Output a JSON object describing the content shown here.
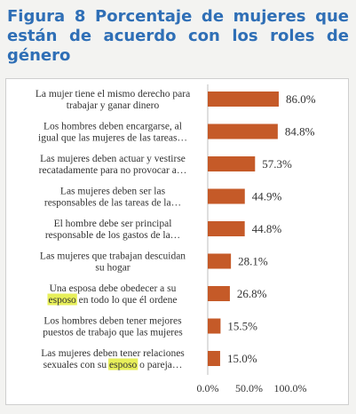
{
  "figure": {
    "title": "Figura 8 Porcentaje de mujeres que están de acuerdo con los roles de género"
  },
  "chart_data": {
    "type": "bar",
    "orientation": "horizontal",
    "title": "",
    "xlabel": "",
    "ylabel": "",
    "xlim": [
      0,
      100
    ],
    "grid": false,
    "bar_color": "#c55a28",
    "highlight_color": "#e7ef5a",
    "categories": [
      [
        "La mujer tiene el mismo derecho para",
        "trabajar y ganar dinero"
      ],
      [
        "Los hombres deben encargarse, al",
        "igual que las mujeres de las tareas…"
      ],
      [
        "Las mujeres deben actuar y vestirse",
        "recatadamente para no provocar a…"
      ],
      [
        "Las mujeres deben ser las",
        "responsables de las tareas de la…"
      ],
      [
        "El hombre debe ser principal",
        "responsable de los gastos de la…"
      ],
      [
        "Las mujeres que trabajan descuidan",
        "su hogar"
      ],
      [
        "Una esposa debe obedecer a su",
        "esposo en todo lo que él ordene"
      ],
      [
        "Los hombres deben tener mejores",
        "puestos de trabajo que las mujeres"
      ],
      [
        "Las mujeres deben tener relaciones",
        "sexuales con su esposo o pareja…"
      ]
    ],
    "highlight_word": "esposo",
    "values": [
      86.0,
      84.8,
      57.3,
      44.9,
      44.8,
      28.1,
      26.8,
      15.5,
      15.0
    ],
    "value_labels": [
      "86.0%",
      "84.8%",
      "57.3%",
      "44.9%",
      "44.8%",
      "28.1%",
      "26.8%",
      "15.5%",
      "15.0%"
    ],
    "x_ticks": [
      0,
      50,
      100
    ],
    "x_tick_labels": [
      "0.0%",
      "50.0%",
      "100.0%"
    ]
  }
}
